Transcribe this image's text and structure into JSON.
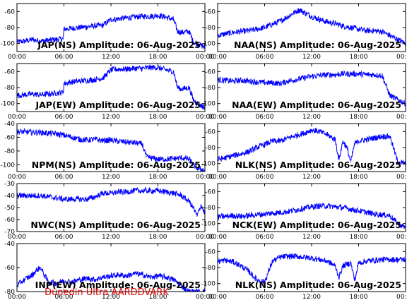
{
  "footer": "Dunedin Ultra AARDDVARK",
  "colors": {
    "trace": "#0000ff",
    "footer": "#dd0000"
  },
  "x_ticks": [
    "00:00",
    "06:00",
    "12:00",
    "18:00",
    "00:00"
  ],
  "chart_data": [
    {
      "type": "line",
      "column": 0,
      "row": 0,
      "title": "JAP(NS) Amplitude: 06-Aug-2025",
      "ylim": [
        -110,
        -50
      ],
      "yticks": [
        -100,
        -80,
        -60
      ],
      "xlim": [
        0,
        24
      ],
      "show_xticks": true,
      "series": [
        {
          "x": [
            0,
            1,
            2,
            3,
            4,
            5,
            5.9,
            6,
            7,
            8,
            9,
            10,
            11,
            12,
            13,
            14,
            15,
            16,
            17,
            18,
            19,
            20,
            20.5,
            21,
            22,
            22.5,
            23,
            24
          ],
          "y": [
            -98,
            -97,
            -95,
            -97,
            -96,
            -95,
            -94,
            -82,
            -81,
            -80,
            -79,
            -78,
            -77,
            -70,
            -69,
            -68,
            -67,
            -66,
            -66,
            -65,
            -67,
            -70,
            -85,
            -86,
            -85,
            -98,
            -100,
            -105
          ]
        }
      ]
    },
    {
      "type": "line",
      "column": 1,
      "row": 0,
      "title": "NAA(NS) Amplitude: 06-Aug-2025",
      "ylim": [
        -110,
        -50
      ],
      "yticks": [
        -100,
        -80,
        -60
      ],
      "xlim": [
        0,
        24
      ],
      "show_xticks": true,
      "series": [
        {
          "x": [
            0,
            1,
            2,
            3,
            4,
            5,
            6,
            7,
            8,
            9,
            10,
            10.5,
            11,
            12,
            13,
            14,
            15,
            16,
            17,
            18,
            19,
            20,
            21,
            22,
            23,
            24
          ],
          "y": [
            -90,
            -88,
            -86,
            -85,
            -84,
            -82,
            -80,
            -76,
            -72,
            -66,
            -60,
            -58,
            -61,
            -66,
            -70,
            -73,
            -75,
            -78,
            -80,
            -82,
            -84,
            -84,
            -85,
            -90,
            -95,
            -100
          ]
        }
      ]
    },
    {
      "type": "line",
      "column": 0,
      "row": 1,
      "title": "JAP(EW) Amplitude: 06-Aug-2025",
      "ylim": [
        -110,
        -50
      ],
      "yticks": [
        -100,
        -80,
        -60
      ],
      "xlim": [
        0,
        24
      ],
      "show_xticks": true,
      "series": [
        {
          "x": [
            0,
            1,
            2,
            3,
            4,
            5,
            5.9,
            6,
            7,
            8,
            9,
            10,
            11,
            12,
            13,
            14,
            15,
            16,
            17,
            18,
            19,
            20,
            20.5,
            21,
            22,
            22.5,
            23,
            24
          ],
          "y": [
            -90,
            -89,
            -88,
            -89,
            -88,
            -87,
            -86,
            -75,
            -73,
            -72,
            -71,
            -70,
            -68,
            -58,
            -57,
            -57,
            -56,
            -56,
            -55,
            -55,
            -58,
            -60,
            -80,
            -82,
            -80,
            -95,
            -100,
            -105
          ]
        }
      ]
    },
    {
      "type": "line",
      "column": 1,
      "row": 1,
      "title": "NAA(EW) Amplitude: 06-Aug-2025",
      "ylim": [
        -110,
        -50
      ],
      "yticks": [
        -100,
        -80,
        -60
      ],
      "xlim": [
        0,
        24
      ],
      "show_xticks": true,
      "series": [
        {
          "x": [
            0,
            1,
            2,
            3,
            4,
            5,
            6,
            7,
            8,
            9,
            10,
            11,
            12,
            13,
            14,
            15,
            16,
            17,
            18,
            19,
            20,
            21,
            22,
            23,
            24
          ],
          "y": [
            -70,
            -71,
            -72,
            -71,
            -72,
            -73,
            -74,
            -74,
            -75,
            -72,
            -70,
            -68,
            -66,
            -65,
            -64,
            -64,
            -63,
            -63,
            -63,
            -64,
            -64,
            -65,
            -90,
            -95,
            -100
          ]
        }
      ]
    },
    {
      "type": "line",
      "column": 0,
      "row": 2,
      "title": "NPM(NS) Amplitude: 06-Aug-2025",
      "ylim": [
        -110,
        -40
      ],
      "yticks": [
        -100,
        -80,
        -60,
        -40
      ],
      "xlim": [
        0,
        24
      ],
      "show_xticks": true,
      "series": [
        {
          "x": [
            0,
            1,
            2,
            3,
            4,
            5,
            6,
            7,
            8,
            9,
            10,
            11,
            12,
            13,
            14,
            15,
            16,
            16.5,
            17,
            18,
            19,
            20,
            21,
            22,
            22.5,
            23,
            24
          ],
          "y": [
            -52,
            -52,
            -53,
            -53,
            -54,
            -55,
            -57,
            -60,
            -63,
            -64,
            -63,
            -65,
            -64,
            -66,
            -67,
            -68,
            -70,
            -88,
            -90,
            -92,
            -92,
            -91,
            -90,
            -92,
            -100,
            -105,
            -108
          ]
        }
      ]
    },
    {
      "type": "line",
      "column": 1,
      "row": 2,
      "title": "NLK(NS) Amplitude: 06-Aug-2025",
      "ylim": [
        -110,
        -50
      ],
      "yticks": [
        -100,
        -80,
        -60
      ],
      "xlim": [
        0,
        24
      ],
      "show_xticks": true,
      "series": [
        {
          "x": [
            0,
            1,
            2,
            3,
            4,
            5,
            6,
            7,
            8,
            9,
            10,
            11,
            12,
            13,
            14,
            15,
            15.5,
            16,
            16.5,
            17,
            17.5,
            18,
            19,
            20,
            21,
            22,
            23,
            24
          ],
          "y": [
            -95,
            -93,
            -90,
            -88,
            -85,
            -80,
            -76,
            -72,
            -72,
            -68,
            -65,
            -62,
            -58,
            -60,
            -64,
            -70,
            -95,
            -72,
            -80,
            -98,
            -75,
            -72,
            -70,
            -68,
            -66,
            -66,
            -98,
            -100
          ]
        }
      ]
    },
    {
      "type": "line",
      "column": 0,
      "row": 3,
      "title": "NWC(NS) Amplitude: 06-Aug-2025",
      "ylim": [
        -70,
        -30
      ],
      "yticks": [
        -70,
        -60,
        -50,
        -40,
        -30
      ],
      "xlim": [
        0,
        24
      ],
      "show_xticks": true,
      "series": [
        {
          "x": [
            0,
            1,
            2,
            3,
            4,
            5,
            6,
            7,
            8,
            9,
            10,
            11,
            12,
            13,
            14,
            15,
            16,
            17,
            18,
            19,
            20,
            21,
            22,
            22.5,
            23,
            23.5,
            24
          ],
          "y": [
            -40,
            -40,
            -40,
            -40,
            -41,
            -42,
            -43,
            -43,
            -43,
            -43,
            -41,
            -38,
            -38,
            -37,
            -37,
            -36,
            -36,
            -36,
            -36,
            -37,
            -38,
            -40,
            -45,
            -50,
            -57,
            -48,
            -55
          ]
        }
      ]
    },
    {
      "type": "line",
      "column": 1,
      "row": 3,
      "title": "NCK(EW) Amplitude: 06-Aug-2025",
      "ylim": [
        -110,
        -50
      ],
      "yticks": [
        -100,
        -80,
        -60
      ],
      "xlim": [
        0,
        24
      ],
      "show_xticks": true,
      "series": [
        {
          "x": [
            0,
            1,
            2,
            3,
            4,
            5,
            6,
            7,
            8,
            9,
            10,
            11,
            12,
            13,
            14,
            15,
            16,
            17,
            18,
            19,
            20,
            21,
            22,
            23,
            24
          ],
          "y": [
            -92,
            -91,
            -90,
            -91,
            -90,
            -89,
            -88,
            -87,
            -86,
            -85,
            -83,
            -81,
            -79,
            -78,
            -78,
            -79,
            -80,
            -82,
            -84,
            -86,
            -88,
            -89,
            -90,
            -100,
            -105
          ]
        }
      ]
    },
    {
      "type": "line",
      "column": 0,
      "row": 4,
      "title": "INP(EW) Amplitude: 06-Aug-2025",
      "ylim": [
        -80,
        -40
      ],
      "yticks": [
        -80,
        -60,
        -40
      ],
      "xlim": [
        0,
        24
      ],
      "show_xticks": true,
      "series": [
        {
          "x": [
            0,
            0.5,
            1,
            1.5,
            2,
            2.5,
            3,
            4,
            5,
            6,
            7,
            8,
            9,
            10,
            11,
            12,
            13,
            14,
            15,
            16,
            17,
            18,
            19,
            20,
            21,
            21.5,
            22,
            24
          ],
          "y": [
            -75,
            -72,
            -70,
            -68,
            -66,
            -62,
            -60,
            -72,
            -73,
            -71,
            -72,
            -70,
            -69,
            -70,
            -68,
            -67,
            -66,
            -67,
            -65,
            -66,
            -68,
            -67,
            -68,
            -70,
            -75,
            -78,
            -80,
            -80
          ]
        }
      ]
    },
    {
      "type": "line",
      "column": 1,
      "row": 4,
      "title": "NLK(NS) Amplitude: 06-Aug-2025",
      "ylim": [
        -110,
        -50
      ],
      "yticks": [
        -100,
        -80,
        -60
      ],
      "xlim": [
        0,
        24
      ],
      "show_xticks": true,
      "series": [
        {
          "x": [
            0,
            1,
            2,
            3,
            4,
            5,
            6,
            6.5,
            7,
            8,
            9,
            10,
            11,
            12,
            13,
            14,
            15,
            15.5,
            16,
            17,
            17.5,
            18,
            19,
            20,
            21,
            22,
            23,
            24
          ],
          "y": [
            -72,
            -71,
            -73,
            -78,
            -85,
            -95,
            -98,
            -85,
            -72,
            -67,
            -66,
            -66,
            -67,
            -68,
            -70,
            -72,
            -78,
            -92,
            -78,
            -74,
            -96,
            -74,
            -72,
            -71,
            -70,
            -70,
            -70,
            -70
          ]
        }
      ]
    }
  ]
}
